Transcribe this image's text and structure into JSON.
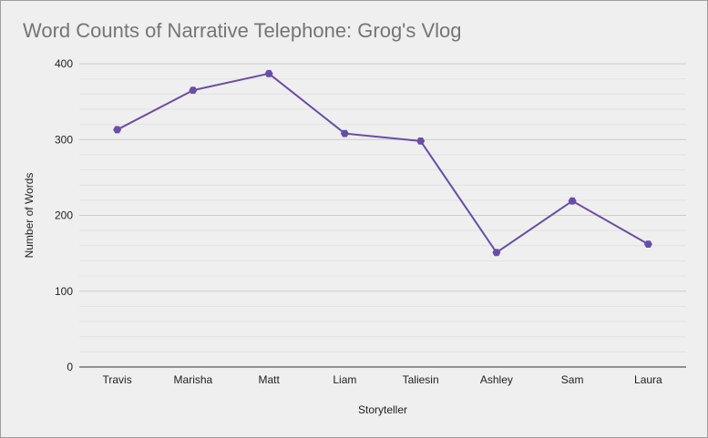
{
  "chart_data": {
    "type": "line",
    "title": "Word Counts of Narrative Telephone: Grog's Vlog",
    "xlabel": "Storyteller",
    "ylabel": "Number of Words",
    "categories": [
      "Travis",
      "Marisha",
      "Matt",
      "Liam",
      "Taliesin",
      "Ashley",
      "Sam",
      "Laura"
    ],
    "series": [
      {
        "values": [
          313,
          365,
          387,
          308,
          298,
          151,
          219,
          162
        ],
        "color": "#674ea7"
      }
    ],
    "ylim": [
      0,
      400
    ],
    "yticks": [
      0,
      100,
      200,
      300,
      400
    ],
    "minor_gridlines": true,
    "legend": "none",
    "background": "#efefef",
    "gridline_color": "#cccccc"
  }
}
